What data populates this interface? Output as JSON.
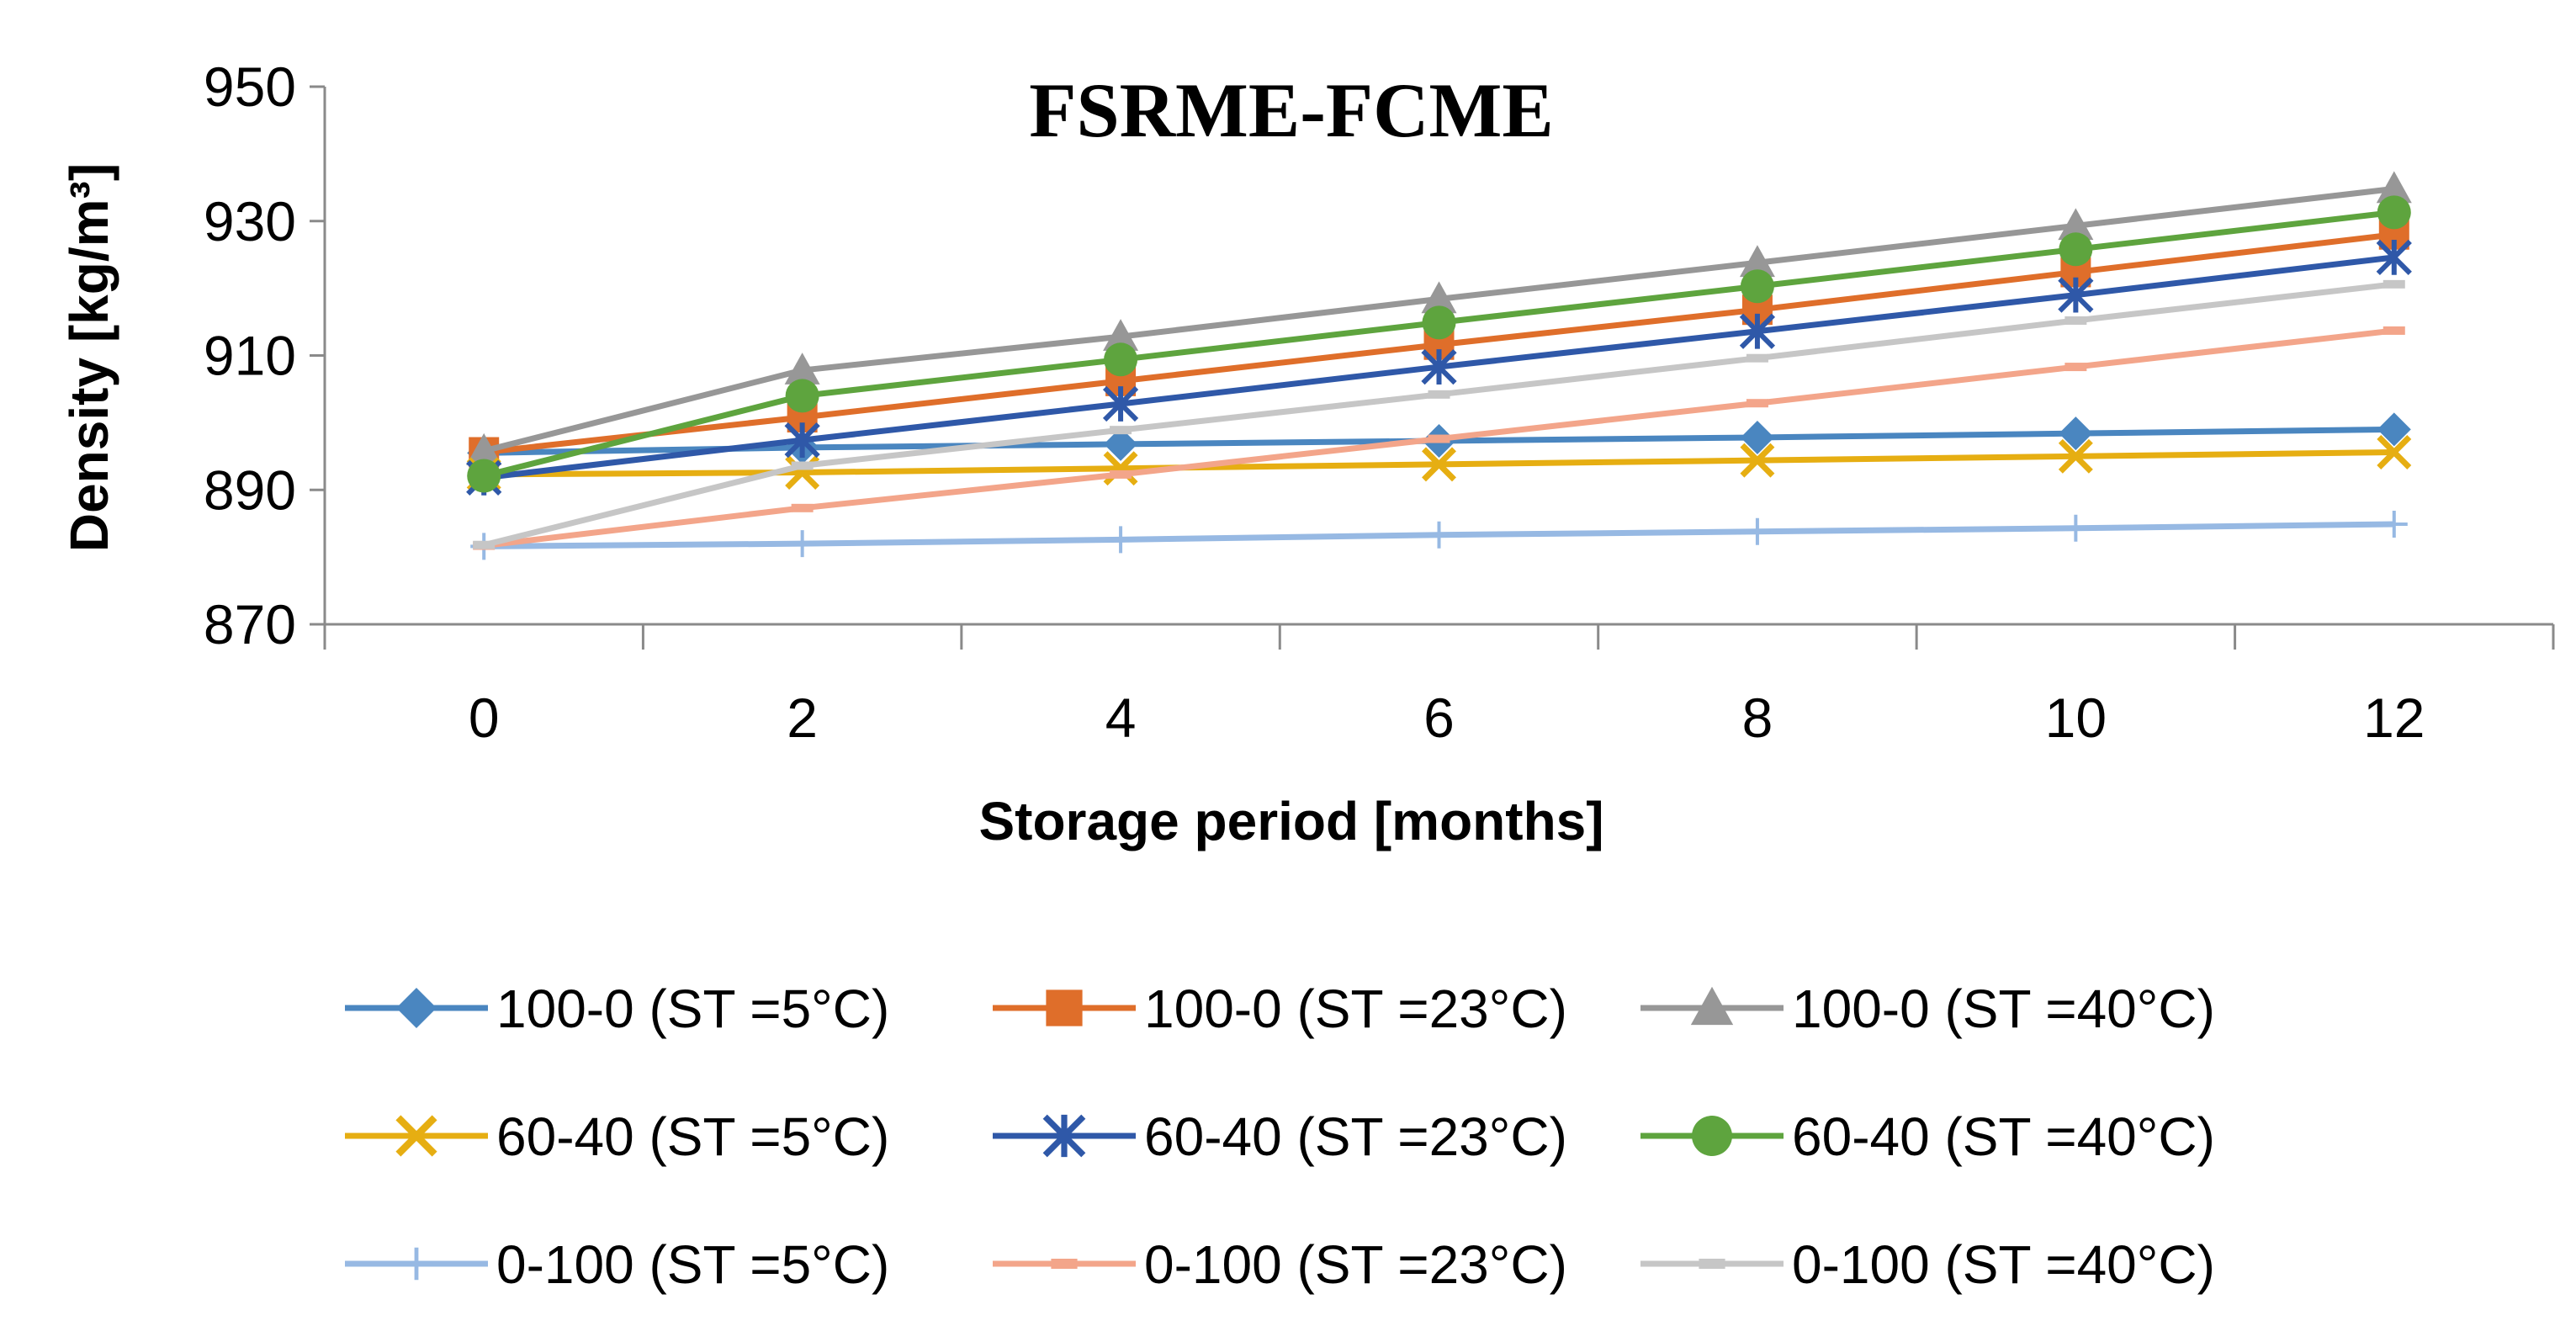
{
  "chart_data": {
    "type": "line",
    "title": "FSRME-FCME",
    "xlabel": "Storage period [months]",
    "ylabel": "Density [kg/m³]",
    "x": [
      0,
      2,
      4,
      6,
      8,
      10,
      12
    ],
    "x_tick_labels": [
      "0",
      "2",
      "4",
      "6",
      "8",
      "10",
      "12"
    ],
    "xlim": [
      -1,
      13
    ],
    "ylim": [
      870,
      950
    ],
    "y_ticks": [
      870,
      890,
      910,
      930,
      950
    ],
    "y_tick_labels": [
      "870",
      "890",
      "910",
      "930",
      "950"
    ],
    "grid": false,
    "legend_position": "bottom",
    "series": [
      {
        "name": "100-0 (ST =5°C)",
        "color": "#4a86c0",
        "marker": "diamond",
        "values": [
          895.5,
          896.3,
          896.8,
          897.3,
          897.8,
          898.4,
          899.0
        ]
      },
      {
        "name": "100-0 (ST =23°C)",
        "color": "#df6e2a",
        "marker": "square",
        "values": [
          895.6,
          900.8,
          906.2,
          911.6,
          916.8,
          922.4,
          928.0
        ]
      },
      {
        "name": "100-0 (ST =40°C)",
        "color": "#979797",
        "marker": "triangle",
        "values": [
          895.8,
          907.8,
          912.8,
          918.4,
          923.8,
          929.3,
          934.8
        ]
      },
      {
        "name": "60-40 (ST =5°C)",
        "color": "#e6ae12",
        "marker": "x",
        "values": [
          892.3,
          892.6,
          893.2,
          893.8,
          894.4,
          895.0,
          895.6
        ]
      },
      {
        "name": "60-40 (ST =23°C)",
        "color": "#2f58a8",
        "marker": "asterisk",
        "values": [
          891.8,
          897.4,
          902.8,
          908.3,
          913.6,
          919.0,
          924.6
        ]
      },
      {
        "name": "60-40 (ST =40°C)",
        "color": "#5ea43e",
        "marker": "circle",
        "values": [
          892.1,
          904.0,
          909.4,
          914.9,
          920.3,
          925.8,
          931.3
        ]
      },
      {
        "name": "0-100 (ST =5°C)",
        "color": "#97b9e3",
        "marker": "plus",
        "values": [
          881.6,
          882.0,
          882.6,
          883.3,
          883.8,
          884.3,
          884.9
        ]
      },
      {
        "name": "0-100 (ST =23°C)",
        "color": "#f3a58a",
        "marker": "dash",
        "values": [
          881.7,
          887.3,
          892.3,
          897.6,
          902.9,
          908.3,
          913.7
        ]
      },
      {
        "name": "0-100 (ST =40°C)",
        "color": "#c6c6c6",
        "marker": "dash",
        "values": [
          881.8,
          893.6,
          898.9,
          904.2,
          909.6,
          915.2,
          920.6
        ]
      }
    ]
  }
}
